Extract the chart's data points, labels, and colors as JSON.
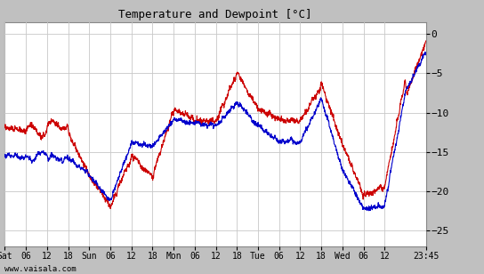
{
  "title": "Temperature and Dewpoint [°C]",
  "watermark": "www.vaisala.com",
  "background_color": "#ffffff",
  "plot_bg_color": "#ffffff",
  "grid_color": "#c8c8c8",
  "temp_color": "#cc0000",
  "dewp_color": "#0000cc",
  "ylim": [
    -27,
    1.5
  ],
  "yticks": [
    0,
    -5,
    -10,
    -15,
    -20,
    -25
  ],
  "x_day_labels": [
    "Sat",
    "06",
    "12",
    "18",
    "Sun",
    "06",
    "12",
    "18",
    "Mon",
    "06",
    "12",
    "18",
    "Tue",
    "06",
    "12",
    "18",
    "Wed",
    "06",
    "12",
    "23:45"
  ],
  "x_day_positions": [
    0,
    6,
    12,
    18,
    24,
    30,
    36,
    42,
    48,
    54,
    60,
    66,
    72,
    78,
    84,
    90,
    96,
    102,
    108,
    119.75
  ],
  "total_hours": 119.75,
  "figsize": [
    5.44,
    3.08
  ],
  "dpi": 100,
  "linewidth": 0.8,
  "outer_bg": "#c0c0c0"
}
